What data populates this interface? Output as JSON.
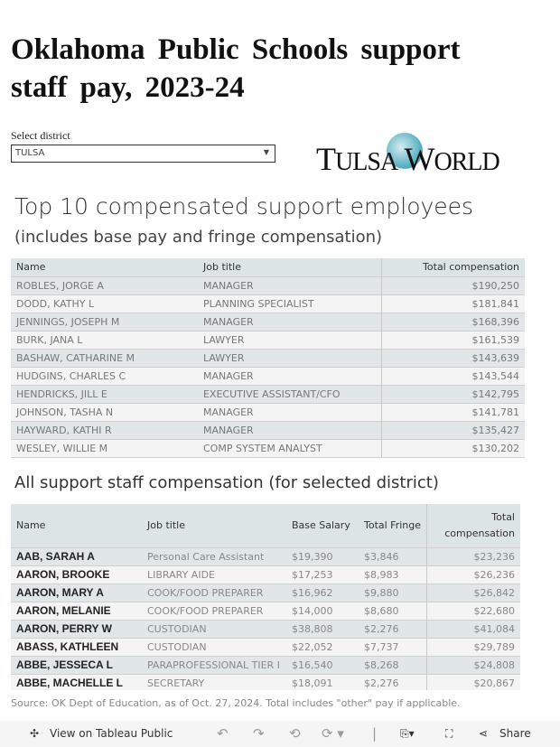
{
  "title": "Oklahoma Public Schools support staff pay, 2023-24",
  "district": {
    "label": "Select district",
    "value": "TULSA"
  },
  "logo": "TULSA WORLD",
  "top10": {
    "title": "Top 10 compensated support employees",
    "subtitle": "(includes base pay and fringe compensation)",
    "headers": [
      "Name",
      "Job title",
      "Total compensation"
    ],
    "rows": [
      [
        "ROBLES, JORGE A",
        "MANAGER",
        "$190,250"
      ],
      [
        "DODD, KATHY L",
        "PLANNING SPECIALIST",
        "$181,841"
      ],
      [
        "JENNINGS, JOSEPH M",
        "MANAGER",
        "$168,396"
      ],
      [
        "BURK, JANA L",
        "LAWYER",
        "$161,539"
      ],
      [
        "BASHAW, CATHARINE M",
        "LAWYER",
        "$143,639"
      ],
      [
        "HUDGINS, CHARLES C",
        "MANAGER",
        "$143,544"
      ],
      [
        "HENDRICKS, JILL E",
        "EXECUTIVE ASSISTANT/CFO",
        "$142,795"
      ],
      [
        "JOHNSON, TASHA N",
        "MANAGER",
        "$141,781"
      ],
      [
        "HAYWARD, KATHI R",
        "MANAGER",
        "$135,427"
      ],
      [
        "WESLEY, WILLIE M",
        "COMP SYSTEM ANALYST",
        "$130,202"
      ]
    ]
  },
  "all": {
    "title": "All support staff compensation (for selected district)",
    "headers": [
      "Name",
      "Job title",
      "Base Salary",
      "Total Fringe",
      "Total compensation"
    ],
    "rows": [
      [
        "AAB, SARAH A",
        "Personal Care Assistant",
        "$19,390",
        "$3,846",
        "$23,236"
      ],
      [
        "AARON, BROOKE",
        "LIBRARY AIDE",
        "$17,253",
        "$8,983",
        "$26,236"
      ],
      [
        "AARON, MARY A",
        "COOK/FOOD PREPARER",
        "$16,962",
        "$9,880",
        "$26,842"
      ],
      [
        "AARON, MELANIE",
        "COOK/FOOD PREPARER",
        "$14,000",
        "$8,680",
        "$22,680"
      ],
      [
        "AARON, PERRY W",
        "CUSTODIAN",
        "$38,808",
        "$2,276",
        "$41,084"
      ],
      [
        "ABASS, KATHLEEN",
        "CUSTODIAN",
        "$22,052",
        "$7,737",
        "$29,789"
      ],
      [
        "ABBE, JESSECA L",
        "PARAPROFESSIONAL TIER I",
        "$16,540",
        "$8,268",
        "$24,808"
      ],
      [
        "ABBE, MACHELLE L",
        "SECRETARY",
        "$18,091",
        "$2,276",
        "$20,867"
      ]
    ]
  },
  "source": "Source: OK Dept of Education, as of Oct. 27, 2024. Total includes \"other\" pay if applicable.",
  "toolbar": {
    "view": "View on Tableau Public",
    "share": "Share"
  }
}
